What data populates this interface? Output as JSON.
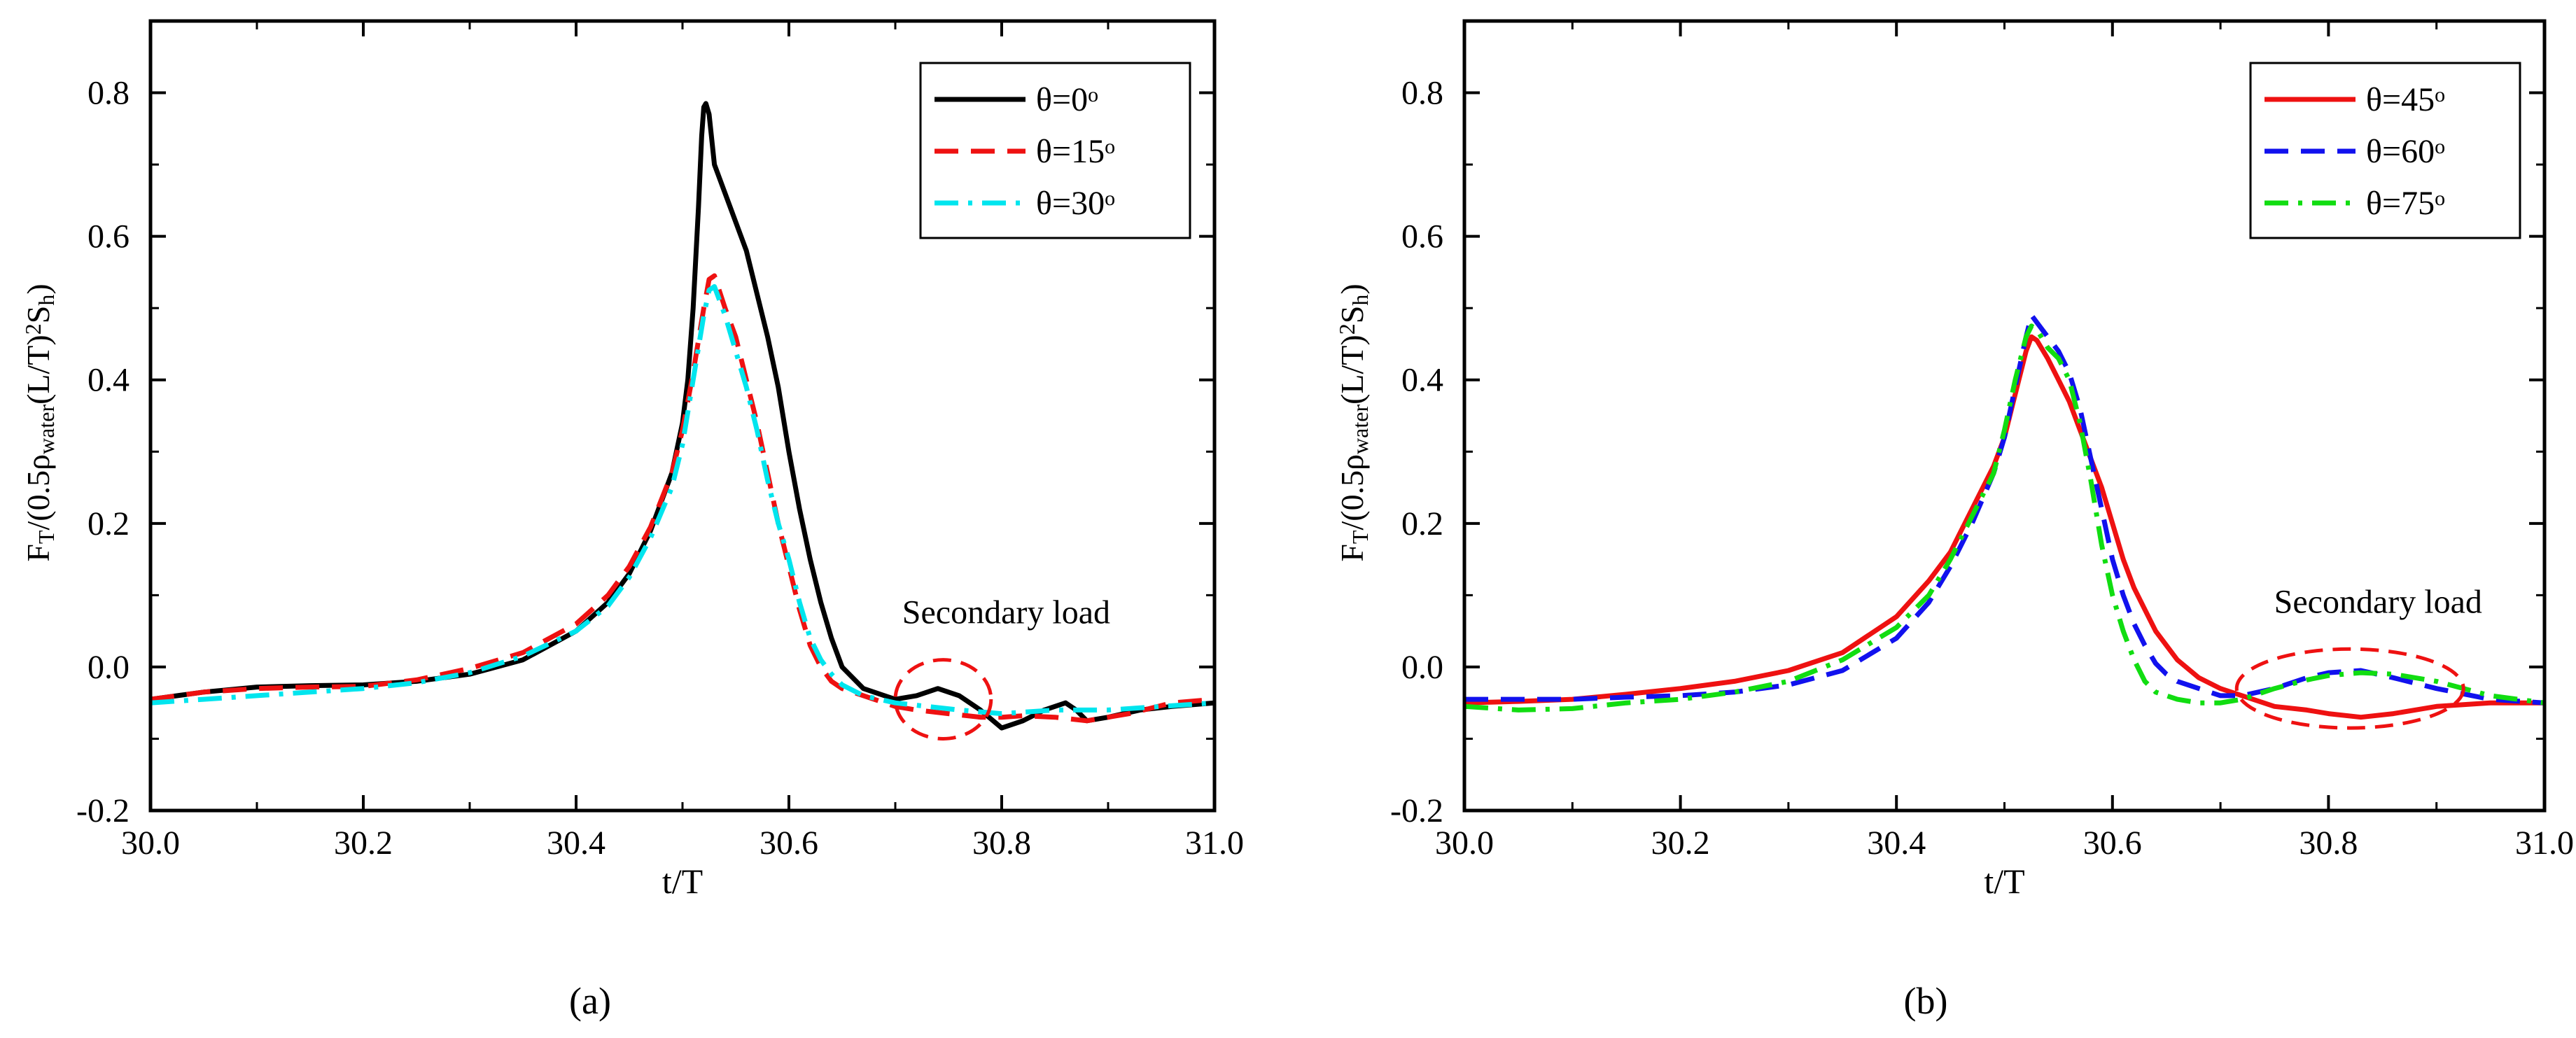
{
  "chart_data": [
    {
      "id": "a",
      "type": "line",
      "panel_label": "(a)",
      "xlabel": "t/T",
      "ylabel": {
        "parts": [
          "F",
          "T",
          "/(0.5ρ",
          "water",
          "(L/T)",
          "2",
          "S",
          "h",
          ")"
        ]
      },
      "xlim": [
        30.0,
        31.0
      ],
      "ylim": [
        -0.2,
        0.9
      ],
      "xticks": [
        30.0,
        30.2,
        30.4,
        30.6,
        30.8,
        31.0
      ],
      "xtick_labels": [
        "30.0",
        "30.2",
        "30.4",
        "30.6",
        "30.8",
        "31.0"
      ],
      "yticks": [
        -0.2,
        0.0,
        0.2,
        0.4,
        0.6,
        0.8
      ],
      "ytick_labels": [
        "-0.2",
        "0.0",
        "0.2",
        "0.4",
        "0.6",
        "0.8"
      ],
      "grid": false,
      "legend_position": "top-right",
      "annotation": {
        "text": "Secondary load",
        "ellipse": {
          "x_center": 30.745,
          "y_center": -0.045,
          "x_radius": 0.045,
          "y_radius": 0.055
        }
      },
      "series": [
        {
          "name": "θ=0°",
          "legend_text": "θ=0",
          "legend_sup": "o",
          "color": "#000000",
          "dash": "solid",
          "x": [
            30.0,
            30.05,
            30.1,
            30.15,
            30.2,
            30.25,
            30.3,
            30.35,
            30.4,
            30.43,
            30.45,
            30.47,
            30.49,
            30.5,
            30.505,
            30.51,
            30.515,
            30.518,
            30.52,
            30.522,
            30.525,
            30.53,
            30.54,
            30.55,
            30.56,
            30.57,
            30.58,
            30.59,
            30.6,
            30.61,
            30.62,
            30.63,
            30.64,
            30.65,
            30.67,
            30.7,
            30.72,
            30.74,
            30.76,
            30.78,
            30.8,
            30.82,
            30.84,
            30.86,
            30.87,
            30.88,
            30.9,
            30.93,
            30.96,
            31.0
          ],
          "y": [
            -0.045,
            -0.035,
            -0.028,
            -0.026,
            -0.025,
            -0.02,
            -0.01,
            0.01,
            0.05,
            0.09,
            0.13,
            0.19,
            0.27,
            0.34,
            0.4,
            0.5,
            0.64,
            0.74,
            0.78,
            0.785,
            0.77,
            0.7,
            0.66,
            0.62,
            0.58,
            0.52,
            0.46,
            0.39,
            0.3,
            0.22,
            0.15,
            0.09,
            0.04,
            0.0,
            -0.03,
            -0.045,
            -0.04,
            -0.03,
            -0.04,
            -0.06,
            -0.085,
            -0.075,
            -0.06,
            -0.05,
            -0.06,
            -0.075,
            -0.07,
            -0.06,
            -0.055,
            -0.05
          ]
        },
        {
          "name": "θ=15°",
          "legend_text": "θ=15",
          "legend_sup": "o",
          "color": "#ee1111",
          "dash": "dashed",
          "x": [
            30.0,
            30.05,
            30.1,
            30.15,
            30.2,
            30.25,
            30.3,
            30.35,
            30.4,
            30.43,
            30.45,
            30.47,
            30.49,
            30.5,
            30.51,
            30.52,
            30.525,
            30.53,
            30.54,
            30.55,
            30.56,
            30.57,
            30.58,
            30.59,
            30.6,
            30.61,
            30.62,
            30.63,
            30.64,
            30.65,
            30.67,
            30.7,
            30.72,
            30.75,
            30.78,
            30.8,
            30.82,
            30.85,
            30.88,
            30.92,
            30.96,
            31.0
          ],
          "y": [
            -0.045,
            -0.035,
            -0.03,
            -0.028,
            -0.027,
            -0.018,
            -0.002,
            0.02,
            0.06,
            0.1,
            0.14,
            0.195,
            0.27,
            0.33,
            0.41,
            0.5,
            0.54,
            0.545,
            0.5,
            0.46,
            0.4,
            0.34,
            0.27,
            0.2,
            0.14,
            0.08,
            0.03,
            0.0,
            -0.02,
            -0.03,
            -0.04,
            -0.055,
            -0.06,
            -0.065,
            -0.07,
            -0.07,
            -0.068,
            -0.07,
            -0.075,
            -0.065,
            -0.05,
            -0.045
          ]
        },
        {
          "name": "θ=30°",
          "legend_text": "θ=30",
          "legend_sup": "o",
          "color": "#00e5ee",
          "dash": "dashdot",
          "x": [
            30.0,
            30.05,
            30.1,
            30.15,
            30.2,
            30.25,
            30.3,
            30.35,
            30.4,
            30.43,
            30.45,
            30.47,
            30.49,
            30.5,
            30.51,
            30.52,
            30.525,
            30.53,
            30.54,
            30.55,
            30.56,
            30.57,
            30.58,
            30.59,
            30.6,
            30.61,
            30.62,
            30.63,
            30.64,
            30.65,
            30.67,
            30.7,
            30.73,
            30.76,
            30.8,
            30.85,
            30.9,
            30.95,
            31.0
          ],
          "y": [
            -0.05,
            -0.045,
            -0.04,
            -0.035,
            -0.03,
            -0.022,
            -0.008,
            0.015,
            0.05,
            0.085,
            0.125,
            0.18,
            0.25,
            0.31,
            0.4,
            0.49,
            0.525,
            0.53,
            0.49,
            0.44,
            0.39,
            0.33,
            0.26,
            0.2,
            0.15,
            0.09,
            0.04,
            0.01,
            -0.01,
            -0.025,
            -0.04,
            -0.05,
            -0.055,
            -0.06,
            -0.065,
            -0.06,
            -0.06,
            -0.055,
            -0.05
          ]
        }
      ]
    },
    {
      "id": "b",
      "type": "line",
      "panel_label": "(b)",
      "xlabel": "t/T",
      "ylabel": {
        "parts": [
          "F",
          "T",
          "/(0.5ρ",
          "water",
          "(L/T)",
          "2",
          "S",
          "h",
          ")"
        ]
      },
      "xlim": [
        30.0,
        31.0
      ],
      "ylim": [
        -0.2,
        0.9
      ],
      "xticks": [
        30.0,
        30.2,
        30.4,
        30.6,
        30.8,
        31.0
      ],
      "xtick_labels": [
        "30.0",
        "30.2",
        "30.4",
        "30.6",
        "30.8",
        "31.0"
      ],
      "yticks": [
        -0.2,
        0.0,
        0.2,
        0.4,
        0.6,
        0.8
      ],
      "ytick_labels": [
        "-0.2",
        "0.0",
        "0.2",
        "0.4",
        "0.6",
        "0.8"
      ],
      "grid": false,
      "legend_position": "top-right",
      "annotation": {
        "text": "Secondary load",
        "ellipse": {
          "x_center": 30.82,
          "y_center": -0.03,
          "x_radius": 0.105,
          "y_radius": 0.055
        }
      },
      "series": [
        {
          "name": "θ=45°",
          "legend_text": "θ=45",
          "legend_sup": "o",
          "color": "#ee1111",
          "dash": "solid",
          "x": [
            30.0,
            30.05,
            30.1,
            30.15,
            30.2,
            30.25,
            30.3,
            30.35,
            30.4,
            30.43,
            30.45,
            30.47,
            30.49,
            30.5,
            30.51,
            30.52,
            30.525,
            30.53,
            30.54,
            30.55,
            30.56,
            30.57,
            30.58,
            30.59,
            30.6,
            30.61,
            30.62,
            30.63,
            30.64,
            30.65,
            30.66,
            30.68,
            30.7,
            30.72,
            30.75,
            30.78,
            30.8,
            30.83,
            30.86,
            30.9,
            30.95,
            31.0
          ],
          "y": [
            -0.05,
            -0.048,
            -0.045,
            -0.038,
            -0.03,
            -0.02,
            -0.005,
            0.02,
            0.07,
            0.12,
            0.16,
            0.22,
            0.28,
            0.32,
            0.38,
            0.44,
            0.46,
            0.455,
            0.43,
            0.4,
            0.37,
            0.33,
            0.29,
            0.25,
            0.2,
            0.15,
            0.11,
            0.08,
            0.05,
            0.03,
            0.01,
            -0.015,
            -0.03,
            -0.04,
            -0.055,
            -0.06,
            -0.065,
            -0.07,
            -0.065,
            -0.055,
            -0.05,
            -0.05
          ]
        },
        {
          "name": "θ=60°",
          "legend_text": "θ=60",
          "legend_sup": "o",
          "color": "#1111ee",
          "dash": "dashed",
          "x": [
            30.0,
            30.05,
            30.1,
            30.15,
            30.2,
            30.25,
            30.3,
            30.35,
            30.4,
            30.43,
            30.45,
            30.47,
            30.49,
            30.5,
            30.51,
            30.52,
            30.525,
            30.53,
            30.54,
            30.55,
            30.56,
            30.57,
            30.58,
            30.59,
            30.6,
            30.61,
            30.62,
            30.63,
            30.64,
            30.65,
            30.66,
            30.68,
            30.7,
            30.72,
            30.75,
            30.78,
            30.8,
            30.83,
            30.86,
            30.9,
            30.95,
            31.0
          ],
          "y": [
            -0.045,
            -0.045,
            -0.045,
            -0.042,
            -0.04,
            -0.035,
            -0.025,
            -0.005,
            0.04,
            0.09,
            0.14,
            0.2,
            0.27,
            0.32,
            0.39,
            0.46,
            0.49,
            0.48,
            0.46,
            0.44,
            0.41,
            0.36,
            0.29,
            0.22,
            0.15,
            0.1,
            0.06,
            0.03,
            0.005,
            -0.01,
            -0.02,
            -0.03,
            -0.04,
            -0.04,
            -0.03,
            -0.015,
            -0.008,
            -0.005,
            -0.015,
            -0.03,
            -0.045,
            -0.05
          ]
        },
        {
          "name": "θ=75°",
          "legend_text": "θ=75",
          "legend_sup": "o",
          "color": "#11dd11",
          "dash": "dashdot",
          "x": [
            30.0,
            30.05,
            30.1,
            30.15,
            30.2,
            30.25,
            30.3,
            30.35,
            30.4,
            30.43,
            30.45,
            30.47,
            30.49,
            30.5,
            30.51,
            30.52,
            30.525,
            30.53,
            30.54,
            30.55,
            30.56,
            30.57,
            30.58,
            30.59,
            30.6,
            30.61,
            30.62,
            30.63,
            30.64,
            30.65,
            30.66,
            30.68,
            30.7,
            30.72,
            30.75,
            30.78,
            30.8,
            30.83,
            30.86,
            30.9,
            30.95,
            31.0
          ],
          "y": [
            -0.055,
            -0.06,
            -0.058,
            -0.05,
            -0.045,
            -0.035,
            -0.02,
            0.01,
            0.055,
            0.1,
            0.15,
            0.21,
            0.27,
            0.33,
            0.4,
            0.46,
            0.475,
            0.47,
            0.445,
            0.43,
            0.4,
            0.34,
            0.26,
            0.17,
            0.1,
            0.05,
            0.01,
            -0.02,
            -0.035,
            -0.04,
            -0.045,
            -0.05,
            -0.05,
            -0.045,
            -0.03,
            -0.018,
            -0.012,
            -0.008,
            -0.01,
            -0.02,
            -0.04,
            -0.05
          ]
        }
      ]
    }
  ]
}
